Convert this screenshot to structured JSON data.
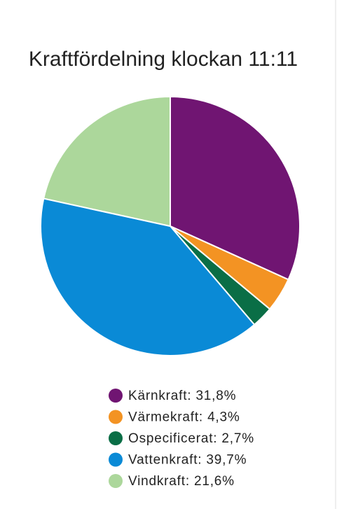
{
  "chart_data": {
    "type": "pie",
    "title": "Kraftfördelning klockan 11:11",
    "categories": [
      "Kärnkraft: 31,8%",
      "Värmekraft: 4,3%",
      "Ospecificerat: 2,7%",
      "Vattenkraft: 39,7%",
      "Vindkraft: 21,6%"
    ],
    "values": [
      31.8,
      4.3,
      2.7,
      39.7,
      21.6
    ],
    "colors": [
      "#701572",
      "#f39323",
      "#0a6e46",
      "#0a8ad6",
      "#acd79b"
    ]
  }
}
